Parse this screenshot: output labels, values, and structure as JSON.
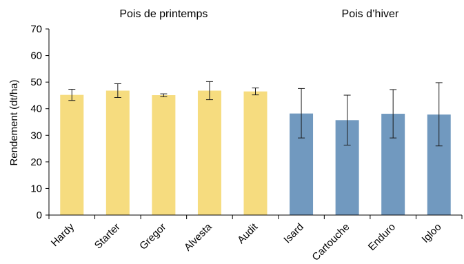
{
  "chart_data": {
    "type": "bar",
    "ylabel": "Rendement (dt/ha)",
    "ylim": [
      0,
      70
    ],
    "yticks": [
      0,
      10,
      20,
      30,
      40,
      50,
      60,
      70
    ],
    "grid": false,
    "categories": [
      "Hardy",
      "Starter",
      "Gregor",
      "Alvesta",
      "Audit",
      "Isard",
      "Cartouche",
      "Enduro",
      "Igloo"
    ],
    "values": [
      45.2,
      46.8,
      45.1,
      46.8,
      46.5,
      38.2,
      35.7,
      38.1,
      37.8
    ],
    "error_low": [
      43.1,
      44.2,
      44.5,
      43.4,
      45.2,
      29.0,
      26.3,
      29.0,
      26.0
    ],
    "error_high": [
      47.3,
      49.4,
      45.6,
      50.2,
      47.8,
      47.6,
      45.1,
      47.2,
      49.8
    ],
    "groups": [
      {
        "label": "Pois de printemps",
        "categories": [
          "Hardy",
          "Starter",
          "Gregor",
          "Alvesta",
          "Audit"
        ],
        "color": "#f6dc7f"
      },
      {
        "label": "Pois d’hiver",
        "categories": [
          "Isard",
          "Cartouche",
          "Enduro",
          "Igloo"
        ],
        "color": "#7199bf"
      }
    ]
  }
}
